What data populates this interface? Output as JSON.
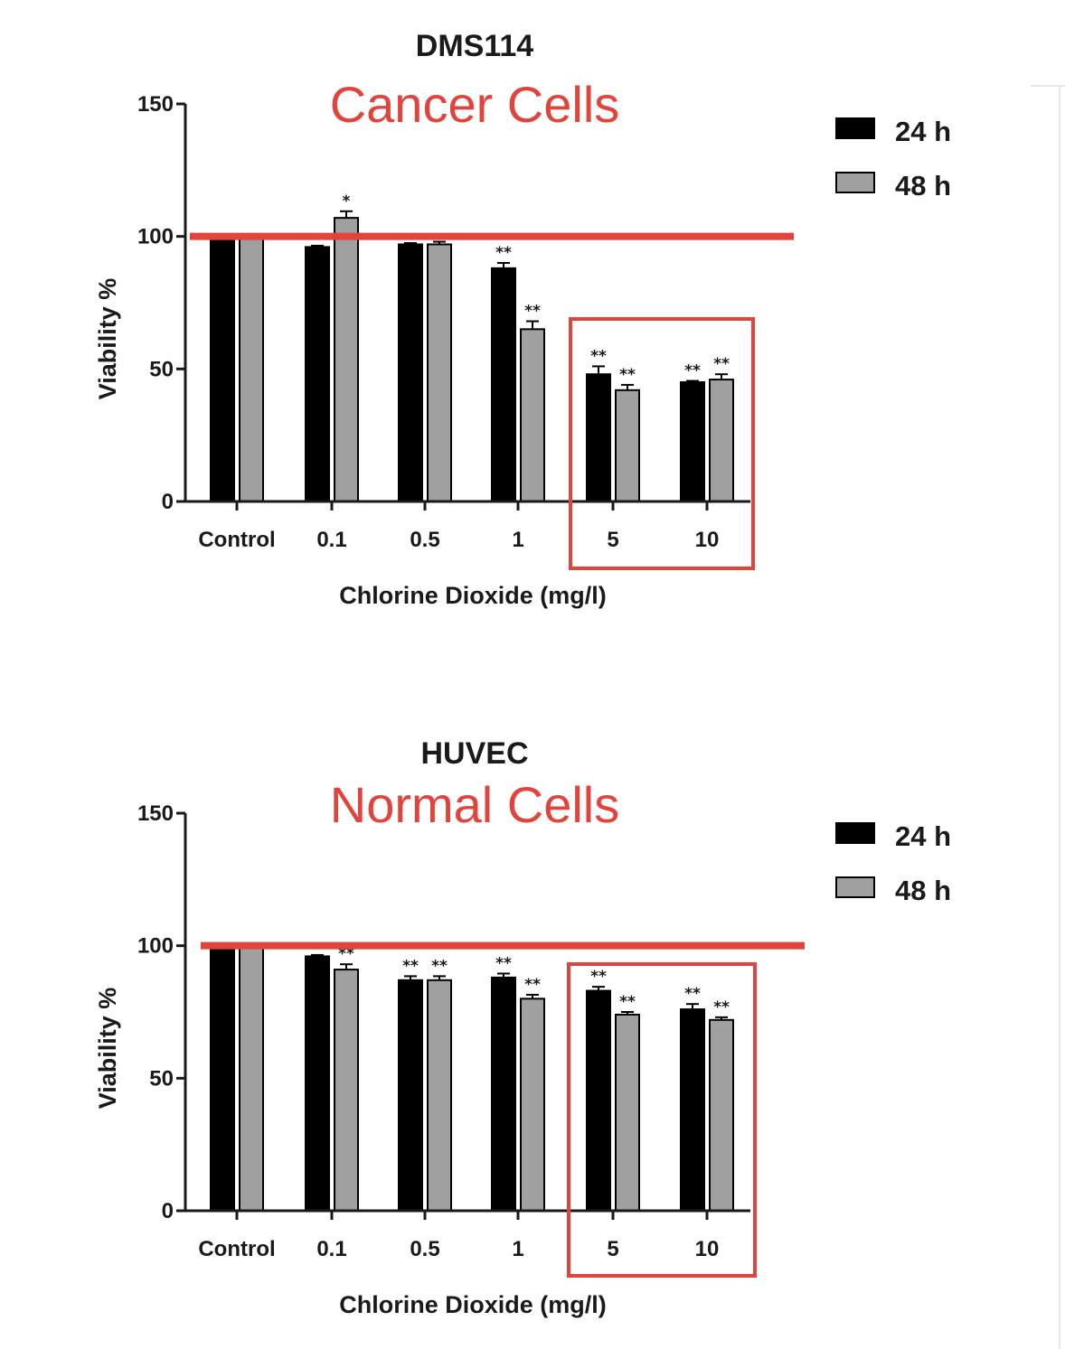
{
  "colors": {
    "series_24h": "#000000",
    "series_48h": "#a0a0a0",
    "annotation": "#e0443c",
    "axis": "#1a1a1a"
  },
  "chart_data": [
    {
      "type": "bar",
      "title": "DMS114",
      "annotation_title": "Cancer Cells",
      "xlabel": "Chlorine Dioxide (mg/l)",
      "ylabel": "Viability %",
      "ylim": [
        0,
        150
      ],
      "yticks": [
        "0",
        "50",
        "100",
        "150"
      ],
      "categories": [
        "Control",
        "0.1",
        "0.5",
        "1",
        "5",
        "10"
      ],
      "series": [
        {
          "name": "24 h",
          "values": [
            100,
            96,
            97,
            88,
            48,
            45
          ],
          "errors": [
            0,
            0.5,
            0.5,
            2,
            3,
            0.5
          ],
          "sig": [
            "",
            "",
            "",
            "**",
            "**",
            "**"
          ]
        },
        {
          "name": "48 h",
          "values": [
            100,
            107,
            97,
            65,
            42,
            46
          ],
          "errors": [
            0,
            2.5,
            1,
            3,
            2,
            2
          ],
          "sig": [
            "",
            "*",
            "",
            "**",
            "**",
            "**"
          ]
        }
      ],
      "reference_line": 100,
      "highlight_categories": [
        "5",
        "10"
      ],
      "legend": "top-right"
    },
    {
      "type": "bar",
      "title": "HUVEC",
      "annotation_title": "Normal Cells",
      "xlabel": "Chlorine Dioxide (mg/l)",
      "ylabel": "Viability %",
      "ylim": [
        0,
        150
      ],
      "yticks": [
        "0",
        "50",
        "100",
        "150"
      ],
      "categories": [
        "Control",
        "0.1",
        "0.5",
        "1",
        "5",
        "10"
      ],
      "series": [
        {
          "name": "24 h",
          "values": [
            100,
            96,
            87,
            88,
            83,
            76
          ],
          "errors": [
            0,
            0.5,
            1.5,
            1.5,
            1.5,
            2
          ],
          "sig": [
            "",
            "",
            "**",
            "**",
            "**",
            "**"
          ]
        },
        {
          "name": "48 h",
          "values": [
            100,
            91,
            87,
            80,
            74,
            72
          ],
          "errors": [
            0,
            2,
            1.5,
            1.5,
            1,
            1
          ],
          "sig": [
            "",
            "**",
            "**",
            "**",
            "**",
            "**"
          ]
        }
      ],
      "reference_line": 100,
      "highlight_categories": [
        "5",
        "10"
      ],
      "legend": "top-right"
    }
  ]
}
